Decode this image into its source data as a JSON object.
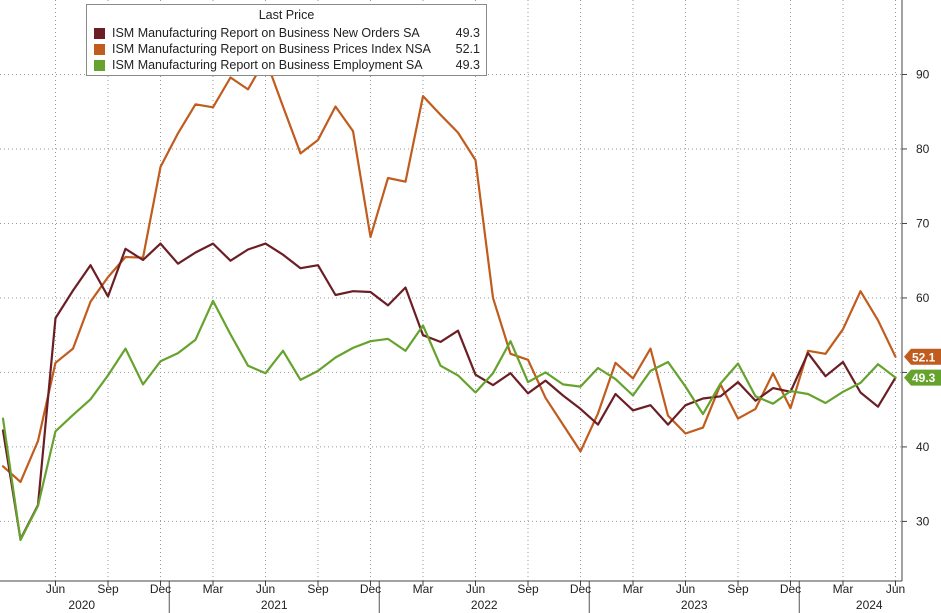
{
  "chart_data": {
    "type": "line",
    "legend": {
      "header": "Last Price",
      "placement": "top-left"
    },
    "x": [
      "2020-03",
      "2020-04",
      "2020-05",
      "2020-06",
      "2020-07",
      "2020-08",
      "2020-09",
      "2020-10",
      "2020-11",
      "2020-12",
      "2021-01",
      "2021-02",
      "2021-03",
      "2021-04",
      "2021-05",
      "2021-06",
      "2021-07",
      "2021-08",
      "2021-09",
      "2021-10",
      "2021-11",
      "2021-12",
      "2022-01",
      "2022-02",
      "2022-03",
      "2022-04",
      "2022-05",
      "2022-06",
      "2022-07",
      "2022-08",
      "2022-09",
      "2022-10",
      "2022-11",
      "2022-12",
      "2023-01",
      "2023-02",
      "2023-03",
      "2023-04",
      "2023-05",
      "2023-06",
      "2023-07",
      "2023-08",
      "2023-09",
      "2023-10",
      "2023-11",
      "2023-12",
      "2024-01",
      "2024-02",
      "2024-03",
      "2024-04",
      "2024-05",
      "2024-06"
    ],
    "series": [
      {
        "name": "ISM Manufacturing Report on Business New Orders SA",
        "color": "#6b1f24",
        "last": "49.3",
        "values": [
          42.2,
          27.6,
          32.2,
          57.3,
          61.0,
          64.4,
          60.2,
          66.6,
          65.1,
          67.3,
          64.6,
          66.1,
          67.3,
          65.0,
          66.5,
          67.3,
          65.8,
          64.0,
          64.4,
          60.4,
          60.9,
          60.8,
          59.0,
          61.4,
          55.0,
          54.1,
          55.6,
          49.7,
          48.3,
          49.9,
          47.2,
          48.9,
          46.9,
          45.1,
          43.0,
          47.1,
          44.9,
          45.6,
          43.0,
          45.6,
          46.5,
          46.8,
          48.7,
          46.2,
          47.9,
          47.4,
          52.6,
          49.5,
          51.4,
          47.3,
          45.4,
          49.3
        ]
      },
      {
        "name": "ISM Manufacturing Report on Business Prices Index NSA",
        "color": "#c05c1d",
        "last": "52.1",
        "values": [
          37.4,
          35.3,
          40.8,
          51.3,
          53.2,
          59.5,
          62.8,
          65.5,
          65.4,
          77.6,
          82.1,
          86.0,
          85.6,
          89.6,
          88.0,
          92.1,
          85.7,
          79.4,
          81.2,
          85.7,
          82.4,
          68.2,
          76.1,
          75.6,
          87.1,
          84.6,
          82.2,
          78.5,
          60.0,
          52.5,
          51.7,
          46.6,
          43.0,
          39.4,
          44.5,
          51.3,
          49.2,
          53.2,
          44.2,
          41.8,
          42.6,
          48.4,
          43.8,
          45.1,
          49.9,
          45.2,
          52.9,
          52.5,
          55.8,
          60.9,
          57.0,
          52.1
        ]
      },
      {
        "name": "ISM Manufacturing Report on Business Employment SA",
        "color": "#66a32e",
        "last": "49.3",
        "values": [
          43.8,
          27.5,
          32.1,
          42.1,
          44.3,
          46.4,
          49.6,
          53.2,
          48.4,
          51.5,
          52.6,
          54.4,
          59.6,
          55.1,
          50.9,
          49.9,
          52.9,
          49.0,
          50.2,
          52.0,
          53.3,
          54.2,
          54.5,
          52.9,
          56.3,
          50.9,
          49.6,
          47.3,
          49.9,
          54.2,
          48.7,
          50.0,
          48.4,
          48.1,
          50.6,
          49.1,
          46.9,
          50.2,
          51.4,
          48.1,
          44.4,
          48.5,
          51.2,
          46.8,
          45.8,
          47.5,
          47.1,
          45.9,
          47.4,
          48.6,
          51.1,
          49.3
        ]
      }
    ],
    "y_axis": {
      "position": "right",
      "ticks": [
        30,
        40,
        50,
        60,
        70,
        80,
        90
      ],
      "tick_labels": [
        "30",
        "40",
        "",
        "60",
        "70",
        "80",
        "90"
      ],
      "range": [
        22,
        100
      ]
    },
    "x_axis": {
      "month_ticks": [
        {
          "label": "Jun",
          "x": "2020-06"
        },
        {
          "label": "Sep",
          "x": "2020-09"
        },
        {
          "label": "Dec",
          "x": "2020-12"
        },
        {
          "label": "Mar",
          "x": "2021-03"
        },
        {
          "label": "Jun",
          "x": "2021-06"
        },
        {
          "label": "Sep",
          "x": "2021-09"
        },
        {
          "label": "Dec",
          "x": "2021-12"
        },
        {
          "label": "Mar",
          "x": "2022-03"
        },
        {
          "label": "Jun",
          "x": "2022-06"
        },
        {
          "label": "Sep",
          "x": "2022-09"
        },
        {
          "label": "Dec",
          "x": "2022-12"
        },
        {
          "label": "Mar",
          "x": "2023-03"
        },
        {
          "label": "Jun",
          "x": "2023-06"
        },
        {
          "label": "Sep",
          "x": "2023-09"
        },
        {
          "label": "Dec",
          "x": "2023-12"
        },
        {
          "label": "Mar",
          "x": "2024-03"
        },
        {
          "label": "Jun",
          "x": "2024-06"
        }
      ],
      "years": [
        {
          "label": "2020",
          "x": "2020-08"
        },
        {
          "label": "2021",
          "x": "2021-07"
        },
        {
          "label": "2022",
          "x": "2022-07"
        },
        {
          "label": "2023",
          "x": "2023-07"
        },
        {
          "label": "2024",
          "x": "2024-05"
        }
      ],
      "year_boundaries": [
        "2021-01",
        "2022-01",
        "2023-01",
        "2024-01"
      ]
    },
    "grid": {
      "horizontal": true,
      "vertical": true,
      "style": "dotted"
    },
    "last_value_badges": [
      {
        "label": "52.1",
        "value": 52.1,
        "color": "#c05c1d"
      },
      {
        "label": "49.3",
        "value": 49.3,
        "color": "#66a32e"
      }
    ]
  }
}
